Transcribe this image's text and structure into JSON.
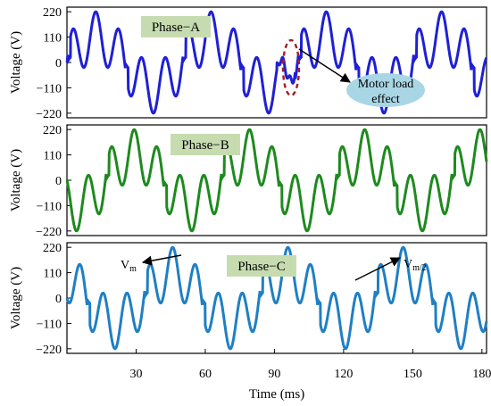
{
  "chart_data": [
    {
      "type": "line",
      "phase_label": "Phase−A",
      "ylabel": "Voltage (V)",
      "yticks": [
        "220",
        "110",
        "0",
        "−110",
        "−220"
      ],
      "ylim": [
        -240,
        240
      ],
      "xlim": [
        0,
        182
      ],
      "color": "#1f1fd6",
      "series": [
        {
          "fundamental_amplitude": 110,
          "fundamental_period_ms": 50,
          "harmonic_amplitude": 110,
          "harmonic_period_ms": 10,
          "phase_shift_deg": 0,
          "effect": "Motor load effect"
        }
      ],
      "annotation": {
        "text_line1": "Motor load",
        "text_line2": "effect",
        "at_ms": 97
      }
    },
    {
      "type": "line",
      "phase_label": "Phase−B",
      "ylabel": "Voltage (V)",
      "yticks": [
        "220",
        "110",
        "0",
        "−110",
        "−220"
      ],
      "ylim": [
        -240,
        240
      ],
      "xlim": [
        0,
        182
      ],
      "color": "#1e8a1e",
      "series": [
        {
          "fundamental_amplitude": 110,
          "fundamental_period_ms": 50,
          "harmonic_amplitude": 110,
          "harmonic_period_ms": 10,
          "phase_shift_deg": -120
        }
      ]
    },
    {
      "type": "line",
      "phase_label": "Phase−C",
      "ylabel": "Voltage (V)",
      "yticks": [
        "220",
        "110",
        "0",
        "−110",
        "−220"
      ],
      "ylim": [
        -240,
        240
      ],
      "xlim": [
        0,
        182
      ],
      "xticks": [
        "30",
        "60",
        "90",
        "120",
        "150",
        "180"
      ],
      "xtick_values": [
        30,
        60,
        90,
        120,
        150,
        180
      ],
      "xlabel": "Time (ms)",
      "color": "#1f7fc4",
      "series": [
        {
          "fundamental_amplitude": 110,
          "fundamental_period_ms": 50,
          "harmonic_amplitude": 110,
          "harmonic_period_ms": 10,
          "phase_shift_deg": 120
        }
      ],
      "annotations": [
        {
          "label": "V",
          "sub": "m"
        },
        {
          "label": "V",
          "sub": "m/2"
        }
      ]
    }
  ]
}
